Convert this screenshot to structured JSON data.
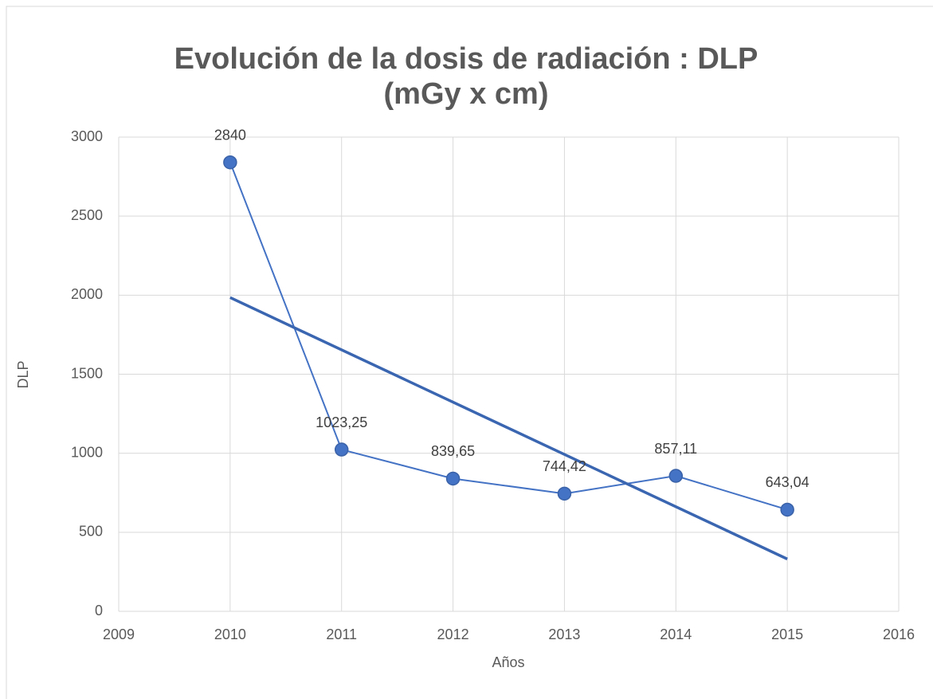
{
  "chart_data": {
    "type": "scatter",
    "title": "Evolución  de la dosis de radiación : DLP (mGy x cm)",
    "xlabel": "Años",
    "ylabel": "DLP",
    "series": [
      {
        "color": "#4472c4",
        "x": [
          2010,
          2011,
          2012,
          2013,
          2014,
          2015
        ],
        "values": [
          2840,
          1023.25,
          839.65,
          744.42,
          857.11,
          643.04
        ],
        "value_labels": [
          "2840",
          "1023,25",
          "839,65",
          "744,42",
          "857,11",
          "643,04"
        ]
      }
    ],
    "trendline": "linear",
    "trendline_color": "#3a65b0",
    "xlim": [
      2009,
      2016
    ],
    "xticks": [
      2009,
      2010,
      2011,
      2012,
      2013,
      2014,
      2015,
      2016
    ],
    "ylim": [
      0,
      3000
    ],
    "yticks": [
      0,
      500,
      1000,
      1500,
      2000,
      2500,
      3000
    ],
    "grid": true
  }
}
